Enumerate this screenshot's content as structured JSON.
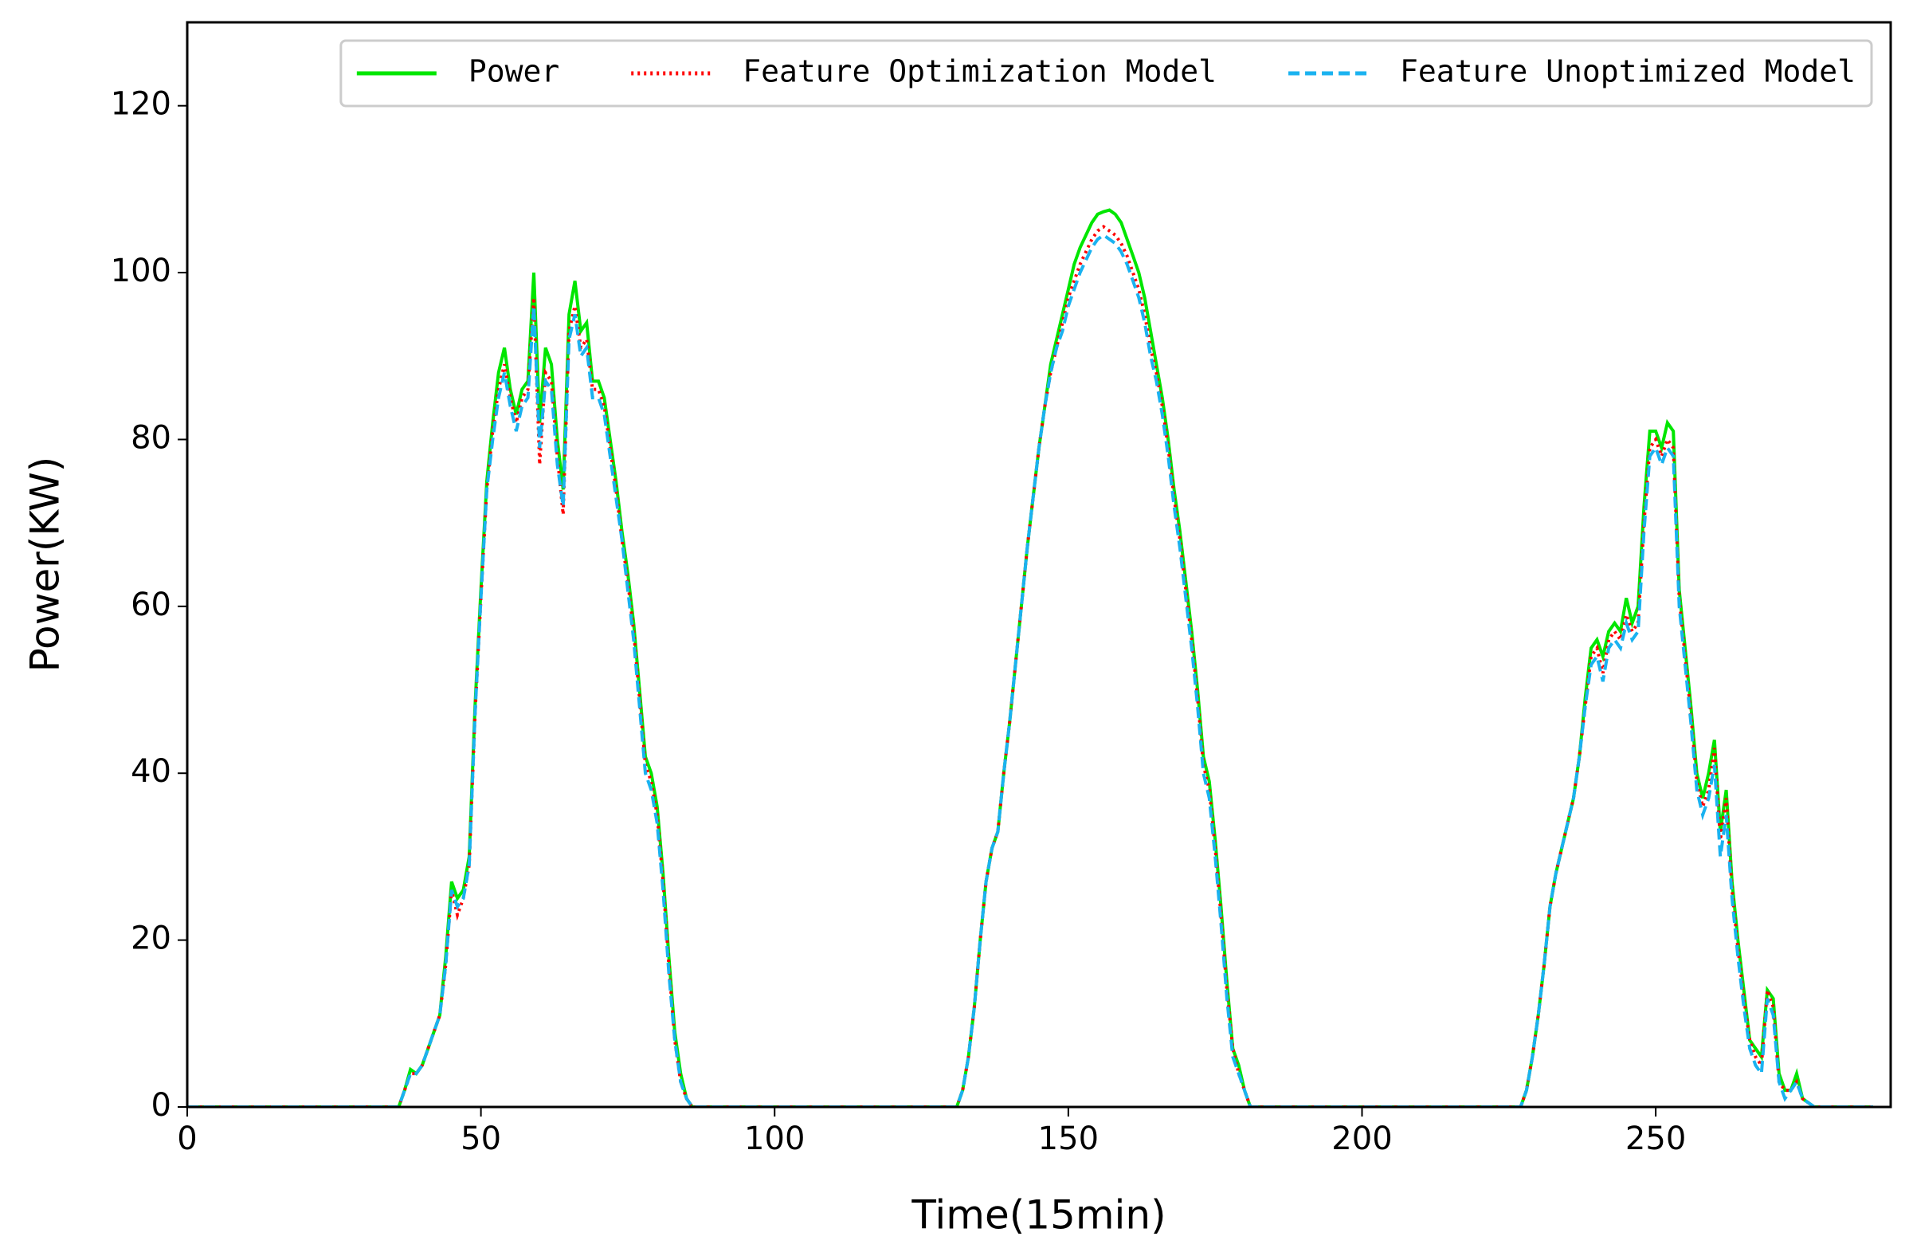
{
  "chart_data": {
    "type": "line",
    "xlabel": "Time(15min)",
    "ylabel": "Power(KW)",
    "xlim": [
      0,
      290
    ],
    "ylim": [
      0,
      130
    ],
    "xticks": [
      0,
      50,
      100,
      150,
      200,
      250
    ],
    "yticks": [
      0,
      20,
      40,
      60,
      80,
      100,
      120
    ],
    "legend": "upper right",
    "x": [
      0,
      36,
      37,
      38,
      39,
      40,
      41,
      42,
      43,
      44,
      45,
      46,
      47,
      48,
      49,
      50,
      51,
      52,
      53,
      54,
      55,
      56,
      57,
      58,
      59,
      60,
      61,
      62,
      63,
      64,
      65,
      66,
      67,
      68,
      69,
      70,
      71,
      72,
      73,
      74,
      75,
      76,
      77,
      78,
      79,
      80,
      81,
      82,
      83,
      84,
      85,
      86,
      131,
      132,
      133,
      134,
      135,
      136,
      137,
      138,
      139,
      140,
      141,
      142,
      143,
      144,
      145,
      146,
      147,
      148,
      149,
      150,
      151,
      152,
      153,
      154,
      155,
      156,
      157,
      158,
      159,
      160,
      161,
      162,
      163,
      164,
      165,
      166,
      167,
      168,
      169,
      170,
      171,
      172,
      173,
      174,
      175,
      176,
      177,
      178,
      179,
      180,
      181,
      227,
      228,
      229,
      230,
      231,
      232,
      233,
      234,
      235,
      236,
      237,
      238,
      239,
      240,
      241,
      242,
      243,
      244,
      245,
      246,
      247,
      248,
      249,
      250,
      251,
      252,
      253,
      254,
      255,
      256,
      257,
      258,
      259,
      260,
      261,
      262,
      263,
      264,
      265,
      266,
      267,
      268,
      269,
      270,
      271,
      272,
      273,
      274,
      275,
      276,
      277,
      282,
      287
    ],
    "series": [
      {
        "name": "Power",
        "color": "#00e600",
        "style": "solid",
        "values": [
          0,
          0,
          2,
          4.5,
          4,
          5,
          7,
          9,
          11,
          18,
          27,
          25,
          26,
          30,
          48,
          62,
          75,
          82,
          88,
          91,
          86,
          83,
          86,
          87,
          100,
          82,
          91,
          89,
          80,
          74,
          95,
          99,
          93,
          94,
          87,
          87,
          85,
          80,
          75,
          69,
          64,
          58,
          50,
          42,
          40,
          36,
          28,
          18,
          9,
          4,
          1,
          0,
          0,
          2,
          6,
          12,
          20,
          27,
          31,
          33,
          40,
          46,
          53,
          60,
          67,
          73,
          79,
          84,
          89,
          92,
          95,
          98,
          101,
          103,
          104.5,
          106,
          107,
          107.3,
          107.5,
          107,
          106,
          104,
          102,
          100,
          97,
          93,
          89,
          85,
          80,
          74,
          69,
          63,
          57,
          50,
          42,
          39,
          32,
          24,
          15,
          7,
          5,
          2,
          0,
          0,
          2,
          6,
          11,
          17,
          24,
          28,
          31,
          34,
          37,
          42,
          49,
          55,
          56,
          54,
          57,
          58,
          57,
          61,
          58,
          60,
          72,
          81,
          81,
          79,
          82,
          81,
          62,
          55,
          48,
          40,
          37,
          40,
          44,
          33,
          38,
          27,
          20,
          14,
          8,
          7,
          6,
          14,
          13,
          4,
          2,
          2,
          4,
          1,
          0.5,
          0,
          0,
          0
        ]
      },
      {
        "name": "Feature Optimization Model",
        "color": "#ff0000",
        "style": "dotted",
        "values": [
          0,
          0,
          2,
          4,
          4,
          5,
          7,
          9,
          11,
          17,
          26,
          23,
          25,
          29,
          47,
          61,
          74,
          81,
          86,
          89,
          85,
          82,
          85,
          86,
          97,
          77,
          88,
          87,
          78,
          71,
          93,
          96,
          91,
          92,
          86,
          86,
          84,
          79,
          74,
          68,
          63,
          57,
          49,
          41,
          39,
          35,
          27,
          17,
          8,
          3,
          1,
          0,
          0,
          2,
          6,
          12,
          20,
          27,
          31,
          33,
          40,
          46,
          53,
          60,
          67,
          73,
          79,
          84,
          88,
          91,
          94,
          97,
          99,
          101,
          102.5,
          104,
          105,
          105.5,
          105,
          104.5,
          103.5,
          102,
          100,
          98,
          95,
          91,
          88,
          84,
          79,
          73,
          68,
          62,
          56,
          49,
          41,
          38,
          31,
          23,
          14,
          7,
          4,
          2,
          0,
          0,
          2,
          6,
          11,
          17,
          24,
          28,
          31,
          34,
          37,
          42,
          48,
          54,
          55,
          52,
          56,
          57,
          56,
          59,
          57,
          58,
          70,
          79,
          80,
          78,
          80,
          79,
          61,
          54,
          47,
          39,
          36,
          38,
          43,
          32,
          37,
          26,
          19,
          13,
          8,
          6,
          5,
          14,
          12,
          3,
          2,
          2,
          3,
          1,
          0.5,
          0,
          0,
          0
        ]
      },
      {
        "name": "Feature Unoptimized Model",
        "color": "#1ab2f0",
        "style": "dashed",
        "values": [
          0,
          0,
          2,
          4,
          4,
          5,
          7,
          9,
          11,
          17,
          26,
          24,
          25,
          29,
          47,
          61,
          74,
          80,
          85,
          88,
          84,
          81,
          84,
          85,
          96,
          79,
          87,
          86,
          77,
          72,
          92,
          95,
          90,
          91,
          85,
          85,
          83,
          78,
          73,
          68,
          62,
          56,
          48,
          40,
          38,
          34,
          26,
          16,
          8,
          3,
          1,
          0,
          0,
          2,
          6,
          12,
          20,
          27,
          31,
          33,
          40,
          46,
          53,
          60,
          67,
          73,
          79,
          84,
          88,
          91,
          93,
          96,
          98,
          100,
          101.5,
          103,
          104,
          104.5,
          104,
          103.5,
          102.5,
          101,
          99,
          97,
          94,
          90,
          87,
          83,
          78,
          72,
          67,
          61,
          55,
          48,
          40,
          37,
          30,
          22,
          13,
          6,
          4,
          2,
          0,
          0,
          2,
          6,
          11,
          17,
          24,
          28,
          31,
          34,
          37,
          42,
          48,
          53,
          54,
          51,
          55,
          56,
          55,
          58,
          56,
          57,
          69,
          78,
          79,
          77,
          79,
          78,
          60,
          53,
          46,
          38,
          35,
          37,
          41,
          30,
          35,
          25,
          18,
          12,
          7,
          5,
          4,
          13,
          11,
          3,
          1,
          2,
          3,
          1,
          0.5,
          0,
          0,
          0
        ]
      }
    ]
  }
}
